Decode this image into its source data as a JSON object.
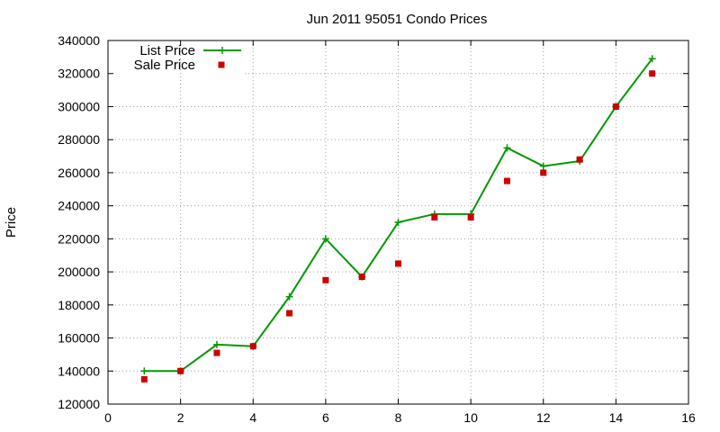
{
  "chart_data": {
    "type": "line",
    "title": "Jun 2011 95051 Condo Prices",
    "xlabel": "",
    "ylabel": "Price",
    "xlim": [
      0,
      16
    ],
    "ylim": [
      120000,
      340000
    ],
    "xticks": [
      0,
      2,
      4,
      6,
      8,
      10,
      12,
      14,
      16
    ],
    "yticks": [
      120000,
      140000,
      160000,
      180000,
      200000,
      220000,
      240000,
      260000,
      280000,
      300000,
      320000,
      340000
    ],
    "grid": true,
    "legend_position": "top-left",
    "series": [
      {
        "name": "List Price",
        "style": "line-plus",
        "color": "#009900",
        "x": [
          1,
          2,
          3,
          4,
          5,
          6,
          7,
          8,
          9,
          10,
          11,
          12,
          13,
          14,
          15
        ],
        "values": [
          140000,
          140000,
          156000,
          155000,
          185000,
          220000,
          197000,
          230000,
          235000,
          235000,
          275000,
          264000,
          267000,
          300000,
          329000
        ]
      },
      {
        "name": "Sale Price",
        "style": "square-points",
        "color": "#cc0000",
        "x": [
          1,
          2,
          3,
          4,
          5,
          6,
          7,
          8,
          9,
          10,
          11,
          12,
          13,
          14,
          15
        ],
        "values": [
          135000,
          140000,
          151000,
          155000,
          175000,
          195000,
          197000,
          205000,
          233000,
          233000,
          255000,
          260000,
          268000,
          300000,
          320000
        ]
      }
    ]
  }
}
